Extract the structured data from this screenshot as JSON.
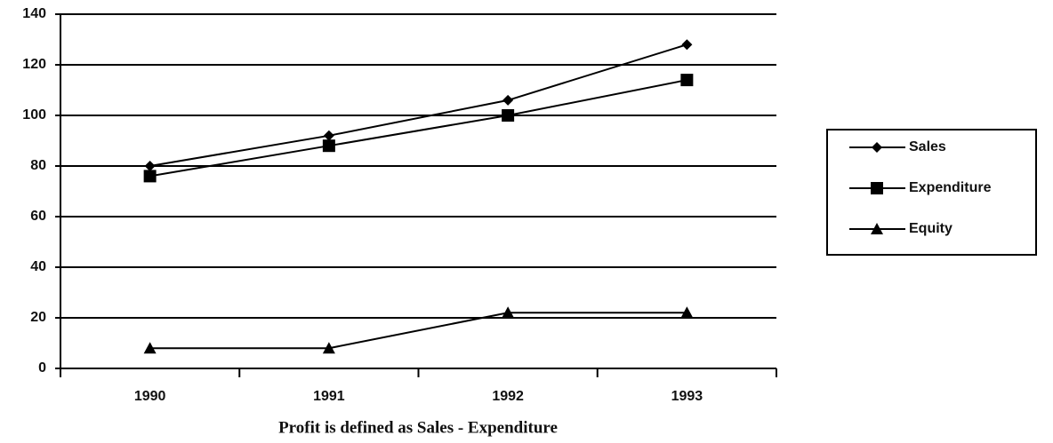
{
  "chart_data": {
    "type": "line",
    "categories": [
      "1990",
      "1991",
      "1992",
      "1993"
    ],
    "series": [
      {
        "name": "Sales",
        "color": "#000000",
        "marker": "diamond",
        "values": [
          80,
          92,
          106,
          128
        ]
      },
      {
        "name": "Expenditure",
        "color": "#000000",
        "marker": "square",
        "values": [
          76,
          88,
          100,
          114
        ]
      },
      {
        "name": "Equity",
        "color": "#000000",
        "marker": "triangle",
        "values": [
          8,
          8,
          22,
          22
        ]
      }
    ],
    "ylim": [
      0,
      140
    ],
    "yticks": [
      0,
      20,
      40,
      60,
      80,
      100,
      120,
      140
    ],
    "grid": true,
    "legend": "right",
    "xlabel": "Profit is defined as Sales - Expenditure"
  }
}
